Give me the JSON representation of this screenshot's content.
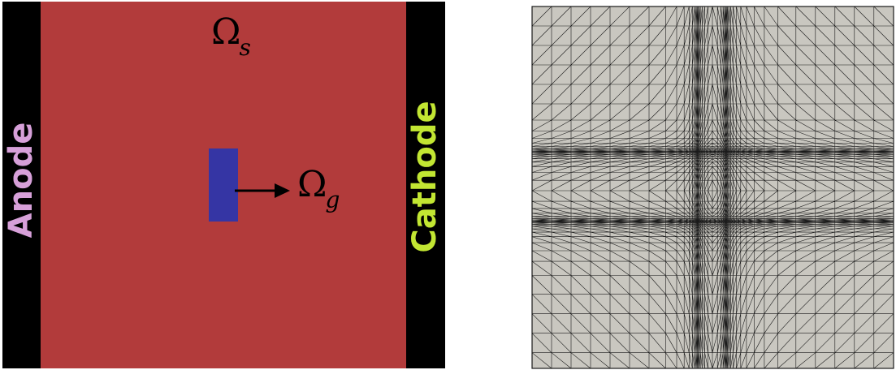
{
  "left_panel": {
    "colors": {
      "electrode": "#000000",
      "solid_domain": "#b23b3b",
      "gas_domain": "#3535a4",
      "arrow": "#000000",
      "symbol": "#000000",
      "anode_label": "#d7a0d9",
      "cathode_label": "#c2e632"
    },
    "anode_label": "Anode",
    "cathode_label": "Cathode",
    "solid_symbol": "Ω",
    "solid_subscript": "s",
    "gas_symbol": "Ω",
    "gas_subscript": "g"
  },
  "right_panel": {
    "colors": {
      "mesh_background": "#c9c7c0",
      "mesh_line": "#1a1a1a"
    },
    "icon": "triangular-mesh"
  }
}
